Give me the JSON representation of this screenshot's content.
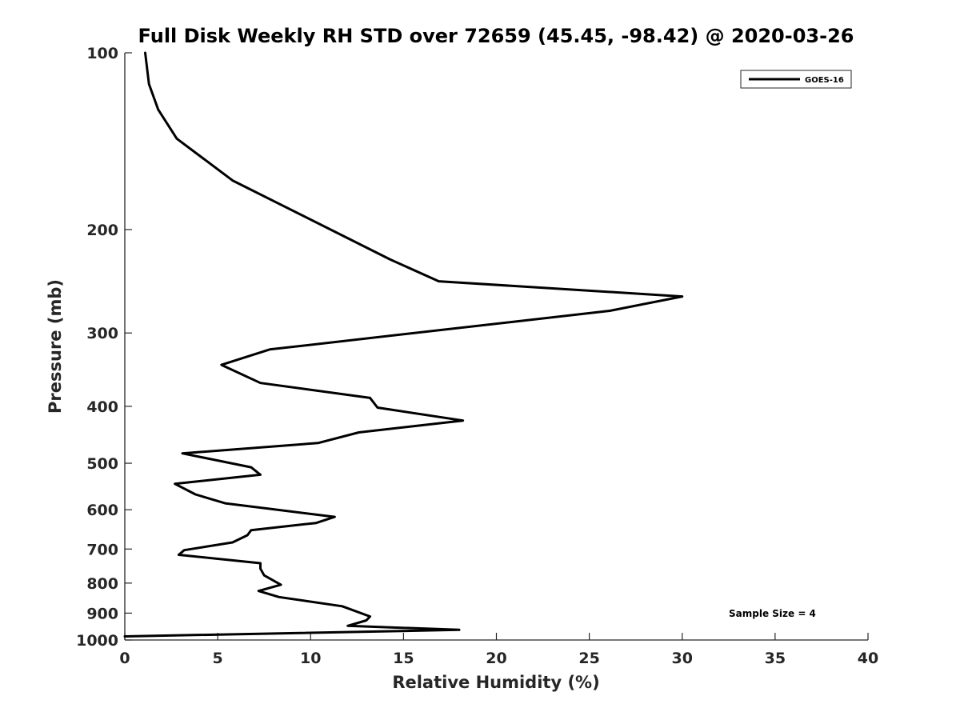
{
  "chart_data": {
    "type": "line",
    "title": "Full Disk Weekly RH STD over 72659 (45.45, -98.42) @ 2020-03-26",
    "xlabel": "Relative Humidity (%)",
    "ylabel": "Pressure (mb)",
    "xlim": [
      0,
      40
    ],
    "ylim": [
      1000,
      100
    ],
    "y_scale": "log",
    "x_ticks": [
      0,
      5,
      10,
      15,
      20,
      25,
      30,
      35,
      40
    ],
    "x_tick_labels": [
      "0",
      "5",
      "10",
      "15",
      "20",
      "25",
      "30",
      "35",
      "40"
    ],
    "y_ticks": [
      100,
      200,
      300,
      400,
      500,
      600,
      700,
      800,
      900,
      1000
    ],
    "y_tick_labels": [
      "100",
      "200",
      "300",
      "400",
      "500",
      "600",
      "700",
      "800",
      "900",
      "1000"
    ],
    "legend": {
      "position": "top-right",
      "entries": [
        "GOES-16"
      ]
    },
    "annotation": "Sample Size = 4",
    "series": [
      {
        "name": "GOES-16",
        "color": "#000000",
        "x": [
          1.1,
          1.3,
          1.8,
          2.8,
          5.8,
          14.3,
          16.9,
          30.0,
          26.1,
          7.8,
          5.2,
          7.3,
          13.2,
          13.6,
          18.2,
          12.6,
          10.4,
          3.1,
          6.8,
          7.3,
          2.7,
          3.8,
          5.4,
          11.3,
          10.3,
          6.8,
          6.6,
          5.8,
          3.2,
          2.9,
          7.3,
          7.3,
          7.5,
          8.4,
          7.2,
          8.3,
          11.7,
          13.2,
          13.0,
          12.0,
          18.0,
          0.0
        ],
        "y": [
          100,
          113,
          125,
          140,
          165,
          225,
          245,
          260,
          275,
          320,
          340,
          365,
          387,
          402,
          423,
          443,
          462,
          481,
          508,
          523,
          542,
          565,
          585,
          617,
          632,
          650,
          663,
          682,
          703,
          716,
          740,
          756,
          776,
          805,
          825,
          845,
          876,
          912,
          926,
          946,
          961,
          986
        ]
      }
    ]
  }
}
